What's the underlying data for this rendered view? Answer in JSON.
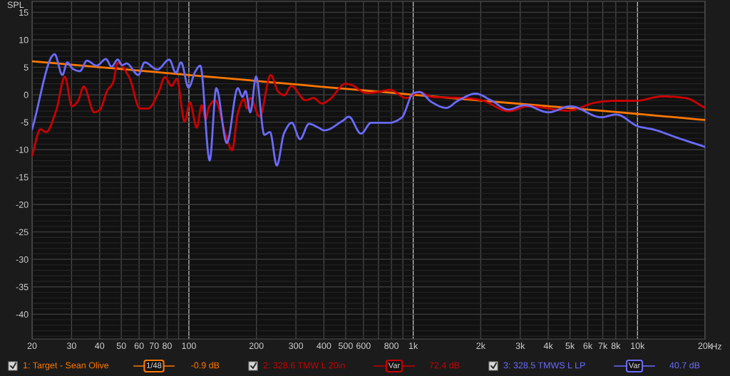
{
  "chart_data": {
    "type": "line",
    "ylabel": "SPL",
    "log": "x",
    "grid": true,
    "legend": "bottom",
    "line_style": "solid",
    "marker": "none",
    "xlim": [
      20,
      20000
    ],
    "ylim": [
      -44.5,
      17
    ],
    "xticks": [
      20,
      30,
      40,
      50,
      60,
      70,
      80,
      {
        "value": 90,
        "label": null
      },
      100,
      200,
      300,
      400,
      500,
      600,
      {
        "value": 700,
        "label": null
      },
      800,
      {
        "value": 900,
        "label": null
      },
      {
        "value": 1000,
        "label": "1k"
      },
      {
        "value": 2000,
        "label": "2k"
      },
      {
        "value": 3000,
        "label": "3k"
      },
      {
        "value": 4000,
        "label": "4k"
      },
      {
        "value": 5000,
        "label": "5k"
      },
      {
        "value": 6000,
        "label": "6k"
      },
      {
        "value": 7000,
        "label": "7k"
      },
      {
        "value": 8000,
        "label": "8k"
      },
      {
        "value": 9000,
        "label": null
      },
      {
        "value": 10000,
        "label": "10k"
      },
      {
        "value": 20000,
        "label": "20k"
      }
    ],
    "xlabel": "Hz",
    "yticks": [
      -40,
      -35,
      -30,
      -25,
      -20,
      -15,
      -10,
      -5,
      0,
      5,
      10,
      15
    ],
    "series": [
      {
        "name": "1: Target - Sean Olive",
        "color": "#ff7700",
        "x": [
          20,
          100,
          1000,
          10000,
          20000
        ],
        "values": [
          6.1,
          3.6,
          0,
          -3.5,
          -4.6
        ]
      },
      {
        "name": "2: 328.6 TMW L 20in",
        "color": "#cc0000",
        "x": [
          20,
          21.8,
          23.1,
          25.6,
          28,
          30.1,
          32,
          34,
          37.8,
          40.2,
          43.2,
          45.9,
          48.2,
          54.3,
          60.5,
          65.9,
          73.4,
          78,
          83.8,
          88.4,
          95.7,
          101.1,
          108.4,
          114.1,
          118.9,
          122.7,
          130.9,
          145.9,
          156,
          165.2,
          176,
          181.1,
          187.8,
          206.8,
          231.6,
          250.7,
          266.3,
          286.2,
          330.6,
          359.8,
          391.5,
          425.9,
          498.2,
          528.9,
          618.6,
          698.1,
          786.7,
          931.7,
          1063,
          1214,
          1701,
          2013,
          2657,
          3260,
          4909,
          6554,
          7943,
          9865,
          12860,
          16360,
          20000
        ],
        "values": [
          -11.1,
          -6.3,
          -6.8,
          -2.9,
          3.3,
          -2.1,
          -1.2,
          1.5,
          -3.2,
          -2.7,
          0.7,
          2.2,
          5.8,
          3.1,
          -2.5,
          -2.5,
          0.5,
          3.2,
          1.6,
          2.9,
          -4.9,
          -1.4,
          -6.0,
          -1.9,
          -4.5,
          -2.3,
          -1.0,
          -7.3,
          -10.1,
          -3.4,
          -0.8,
          -2.5,
          -0.6,
          -4.0,
          3.6,
          0.5,
          -0.1,
          1.6,
          -1.0,
          -0.6,
          -1.6,
          -0.8,
          2.0,
          1.8,
          0.3,
          0.5,
          0.9,
          -0.6,
          0.5,
          -0.4,
          -0.6,
          -1.0,
          -3.0,
          -2.1,
          -2.9,
          -1.4,
          -1.1,
          -1.1,
          -0.3,
          -0.6,
          -2.4
        ]
      },
      {
        "name": "3: 328.5 TMWS L LP",
        "color": "#6b6bff",
        "x": [
          20,
          25.2,
          27.3,
          28.7,
          30.4,
          32.7,
          35.1,
          38.8,
          42.7,
          45.2,
          48.2,
          50.4,
          52.8,
          59.5,
          63.5,
          72.4,
          81.8,
          87.5,
          92.3,
          99.7,
          106.7,
          112.5,
          123.8,
          132.5,
          147.6,
          165.2,
          173.4,
          178.9,
          187.8,
          199.4,
          217,
          230,
          246.6,
          265.7,
          287.6,
          313,
          342.8,
          378.4,
          401,
          486.4,
          516.4,
          585.4,
          649.4,
          785,
          887.9,
          1002,
          1063,
          1214,
          1403,
          1582,
          1896,
          2218,
          2657,
          3144,
          3999,
          5028,
          6874,
          8040,
          10110,
          11680,
          15190,
          20000
        ],
        "values": [
          -6.3,
          7.4,
          3.6,
          5.9,
          4.7,
          4.3,
          6.2,
          5.3,
          6.5,
          5.1,
          6.4,
          5.4,
          5.7,
          3.6,
          5.9,
          4.6,
          6.4,
          4.0,
          5.9,
          1.3,
          4.2,
          5.3,
          -12.0,
          1.2,
          -8.8,
          1.2,
          -0.4,
          0.7,
          -3.2,
          3.3,
          -7.3,
          -6.8,
          -12.9,
          -7.0,
          -5.1,
          -8.1,
          -5.3,
          -6.0,
          -6.5,
          -4.7,
          -4.0,
          -7.1,
          -5.1,
          -5.1,
          -4.2,
          0.3,
          0.5,
          -1.4,
          -2.4,
          -1.1,
          0.2,
          -1.0,
          -2.7,
          -1.9,
          -3.2,
          -2.1,
          -4.1,
          -3.6,
          -5.8,
          -6.3,
          -7.9,
          -9.5
        ]
      }
    ],
    "annotations": [
      "1/48",
      "-0.9 dB",
      "Var",
      "72.4 dB",
      "Var",
      "40.7 dB"
    ]
  }
}
